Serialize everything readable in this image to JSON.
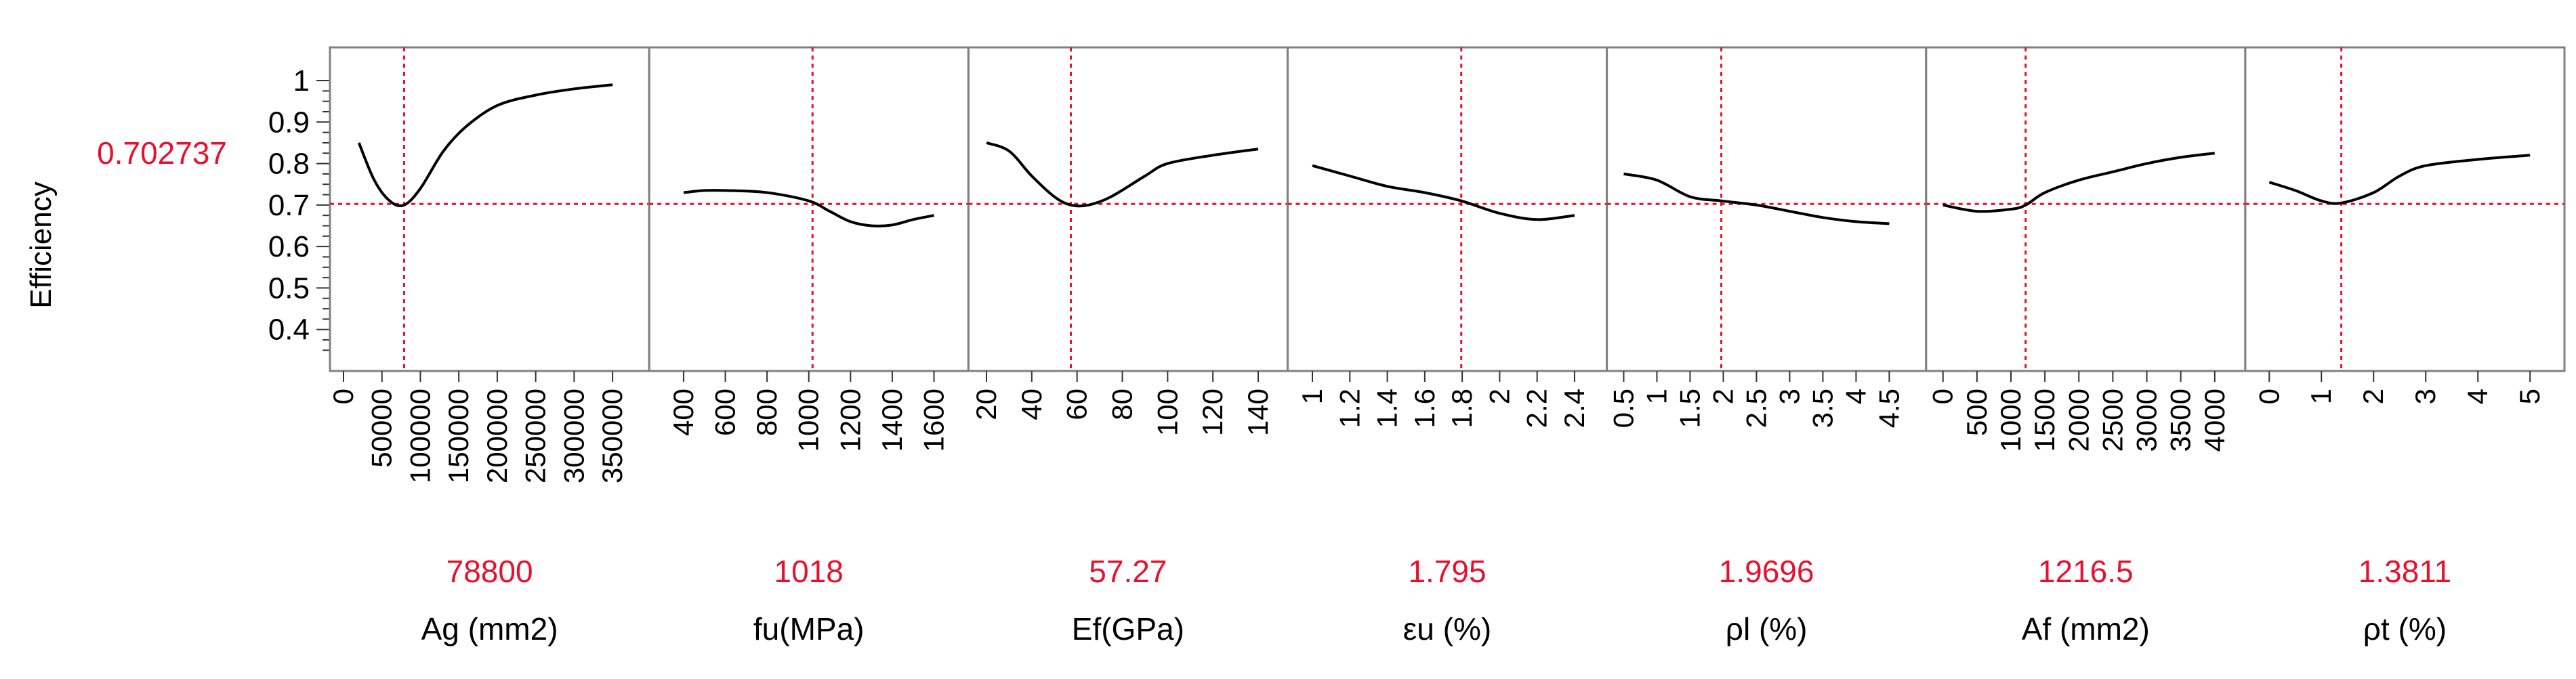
{
  "response": {
    "label": "Efficiency",
    "current_value_text": "0.702737",
    "current_value": 0.702737,
    "ylim": [
      0.3,
      1.08
    ],
    "yticks": [
      0.4,
      0.5,
      0.6,
      0.7,
      0.8,
      0.9,
      1
    ],
    "ytick_labels": [
      "0.4",
      "0.5",
      "0.6",
      "0.7",
      "0.8",
      "0.9",
      "1"
    ]
  },
  "colors": {
    "curve": "#000000",
    "crosshair": "#e8112d",
    "current_value_text": "#e8112d",
    "frame": "#808080",
    "text": "#000000"
  },
  "chart_data": {
    "type": "line",
    "title": "",
    "ylabel": "Efficiency",
    "panels": [
      {
        "factor_label": "Ag (mm2)",
        "current_value_text": "78800",
        "current_value": 78800,
        "xlim": [
          0,
          380000
        ],
        "xticks": [
          0,
          50000,
          100000,
          150000,
          200000,
          250000,
          300000,
          350000
        ],
        "xtick_labels": [
          "0",
          "50000",
          "100000",
          "150000",
          "200000",
          "250000",
          "300000",
          "350000"
        ],
        "x": [
          20000,
          40000,
          60000,
          78800,
          100000,
          130000,
          160000,
          200000,
          250000,
          300000,
          350000
        ],
        "y": [
          0.85,
          0.76,
          0.71,
          0.7,
          0.74,
          0.83,
          0.89,
          0.94,
          0.965,
          0.98,
          0.99
        ]
      },
      {
        "factor_label": "fu(MPa)",
        "current_value_text": "1018",
        "current_value": 1018,
        "xlim": [
          300,
          1700
        ],
        "xticks": [
          400,
          600,
          800,
          1000,
          1200,
          1400,
          1600
        ],
        "xtick_labels": [
          "400",
          "600",
          "800",
          "1000",
          "1200",
          "1400",
          "1600"
        ],
        "x": [
          400,
          500,
          600,
          800,
          1000,
          1100,
          1200,
          1300,
          1400,
          1500,
          1600
        ],
        "y": [
          0.73,
          0.735,
          0.735,
          0.73,
          0.71,
          0.685,
          0.66,
          0.65,
          0.652,
          0.665,
          0.675
        ]
      },
      {
        "factor_label": "Ef(GPa)",
        "current_value_text": "57.27",
        "current_value": 57.27,
        "xlim": [
          18,
          147
        ],
        "xticks": [
          20,
          40,
          60,
          80,
          100,
          120,
          140
        ],
        "xtick_labels": [
          "20",
          "40",
          "60",
          "80",
          "100",
          "120",
          "140"
        ],
        "x": [
          20,
          30,
          40,
          50,
          57.27,
          65,
          75,
          90,
          100,
          120,
          140
        ],
        "y": [
          0.85,
          0.83,
          0.77,
          0.72,
          0.7,
          0.7,
          0.72,
          0.77,
          0.8,
          0.82,
          0.835
        ]
      },
      {
        "factor_label": "εu (%)",
        "current_value_text": "1.795",
        "current_value": 1.795,
        "xlim": [
          0.94,
          2.5
        ],
        "xticks": [
          1,
          1.2,
          1.4,
          1.6,
          1.8,
          2,
          2.2,
          2.4
        ],
        "xtick_labels": [
          "1",
          "1.2",
          "1.4",
          "1.6",
          "1.8",
          "2",
          "2.2",
          "2.4"
        ],
        "x": [
          1.0,
          1.2,
          1.4,
          1.6,
          1.795,
          2.0,
          2.2,
          2.4
        ],
        "y": [
          0.795,
          0.77,
          0.745,
          0.73,
          0.71,
          0.68,
          0.665,
          0.675
        ]
      },
      {
        "factor_label": "ρl (%)",
        "current_value_text": "1.9696",
        "current_value": 1.9696,
        "xlim": [
          0.45,
          4.85
        ],
        "xticks": [
          0.5,
          1,
          1.5,
          2,
          2.5,
          3,
          3.5,
          4,
          4.5
        ],
        "xtick_labels": [
          "0.5",
          "1",
          "1.5",
          "2",
          "2.5",
          "3",
          "3.5",
          "4",
          "4.5"
        ],
        "x": [
          0.5,
          1.0,
          1.5,
          1.9696,
          2.5,
          3.0,
          3.5,
          4.0,
          4.5
        ],
        "y": [
          0.775,
          0.76,
          0.72,
          0.71,
          0.7,
          0.685,
          0.67,
          0.66,
          0.655
        ]
      },
      {
        "factor_label": "Af (mm2)",
        "current_value_text": "1216.5",
        "current_value": 1216.5,
        "xlim": [
          -50,
          4250
        ],
        "xticks": [
          0,
          500,
          1000,
          1500,
          2000,
          2500,
          3000,
          3500,
          4000
        ],
        "xtick_labels": [
          "0",
          "500",
          "1000",
          "1500",
          "2000",
          "2500",
          "3000",
          "3500",
          "4000"
        ],
        "x": [
          0,
          500,
          1000,
          1216.5,
          1500,
          2000,
          2500,
          3000,
          3500,
          4000
        ],
        "y": [
          0.7,
          0.685,
          0.69,
          0.7,
          0.73,
          0.76,
          0.78,
          0.8,
          0.815,
          0.825
        ]
      },
      {
        "factor_label": "ρt (%)",
        "current_value_text": "1.3811",
        "current_value": 1.3811,
        "xlim": [
          -0.2,
          5.4
        ],
        "xticks": [
          0,
          1,
          2,
          3,
          4,
          5
        ],
        "xtick_labels": [
          "0",
          "1",
          "2",
          "3",
          "4",
          "5"
        ],
        "x": [
          0,
          0.5,
          1.0,
          1.3811,
          2.0,
          2.5,
          3.0,
          4.0,
          5.0
        ],
        "y": [
          0.755,
          0.735,
          0.71,
          0.705,
          0.73,
          0.77,
          0.795,
          0.81,
          0.82
        ]
      }
    ]
  }
}
